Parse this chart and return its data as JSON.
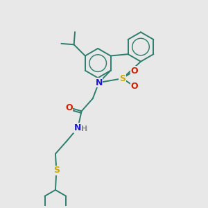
{
  "bg_color": "#e8e8e8",
  "atom_colors": {
    "N": "#1a1acc",
    "O": "#cc2000",
    "S": "#ccaa00",
    "H": "#888888"
  },
  "bond_color": "#2d7d6e",
  "line_width": 1.4,
  "fig_size": [
    3.0,
    3.0
  ],
  "dpi": 100
}
